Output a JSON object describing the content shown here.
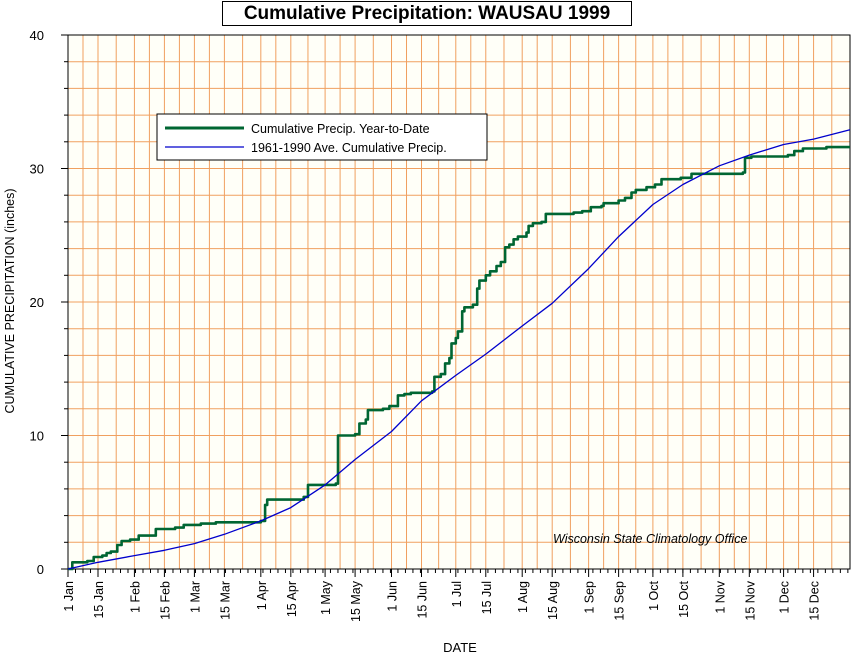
{
  "chart_data": {
    "type": "line",
    "title": "Cumulative Precipitation: WAUSAU 1999",
    "xlabel": "DATE",
    "ylabel": "CUMULATIVE PRECIPITATION (inches)",
    "ylim": [
      0,
      40
    ],
    "yticks": [
      0,
      10,
      20,
      30,
      40
    ],
    "xlim": [
      1,
      366
    ],
    "xticks": [
      {
        "day": 1,
        "label": "1 Jan"
      },
      {
        "day": 15,
        "label": "15 Jan"
      },
      {
        "day": 32,
        "label": "1 Feb"
      },
      {
        "day": 46,
        "label": "15 Feb"
      },
      {
        "day": 60,
        "label": "1 Mar"
      },
      {
        "day": 74,
        "label": "15 Mar"
      },
      {
        "day": 91,
        "label": "1 Apr"
      },
      {
        "day": 105,
        "label": "15 Apr"
      },
      {
        "day": 121,
        "label": "1 May"
      },
      {
        "day": 135,
        "label": "15 May"
      },
      {
        "day": 152,
        "label": "1 Jun"
      },
      {
        "day": 166,
        "label": "15 Jun"
      },
      {
        "day": 182,
        "label": "1 Jul"
      },
      {
        "day": 196,
        "label": "15 Jul"
      },
      {
        "day": 213,
        "label": "1 Aug"
      },
      {
        "day": 227,
        "label": "15 Aug"
      },
      {
        "day": 244,
        "label": "1 Sep"
      },
      {
        "day": 258,
        "label": "15 Sep"
      },
      {
        "day": 274,
        "label": "1 Oct"
      },
      {
        "day": 288,
        "label": "15 Oct"
      },
      {
        "day": 305,
        "label": "1 Nov"
      },
      {
        "day": 319,
        "label": "15 Nov"
      },
      {
        "day": 335,
        "label": "1 Dec"
      },
      {
        "day": 349,
        "label": "15 Dec"
      }
    ],
    "grid": true,
    "legend_position": "upper-left",
    "annotation": "Wisconsin State Climatology Office",
    "series": [
      {
        "name": "Cumulative Precip. Year-to-Date",
        "color": "#006633",
        "style": "step",
        "points": [
          [
            1,
            0.0
          ],
          [
            3,
            0.5
          ],
          [
            10,
            0.6
          ],
          [
            13,
            0.9
          ],
          [
            17,
            1.0
          ],
          [
            19,
            1.2
          ],
          [
            21,
            1.3
          ],
          [
            24,
            1.8
          ],
          [
            26,
            2.1
          ],
          [
            30,
            2.2
          ],
          [
            34,
            2.5
          ],
          [
            42,
            3.0
          ],
          [
            51,
            3.1
          ],
          [
            55,
            3.3
          ],
          [
            63,
            3.4
          ],
          [
            70,
            3.5
          ],
          [
            91,
            3.6
          ],
          [
            93,
            4.8
          ],
          [
            94,
            5.2
          ],
          [
            111,
            5.4
          ],
          [
            113,
            6.3
          ],
          [
            126,
            6.4
          ],
          [
            127,
            10.0
          ],
          [
            135,
            10.1
          ],
          [
            137,
            10.9
          ],
          [
            140,
            11.2
          ],
          [
            141,
            11.9
          ],
          [
            148,
            12.0
          ],
          [
            151,
            12.2
          ],
          [
            155,
            13.0
          ],
          [
            158,
            13.1
          ],
          [
            161,
            13.2
          ],
          [
            171,
            13.3
          ],
          [
            172,
            14.4
          ],
          [
            175,
            14.6
          ],
          [
            177,
            15.4
          ],
          [
            179,
            15.8
          ],
          [
            180,
            16.9
          ],
          [
            182,
            17.3
          ],
          [
            183,
            17.8
          ],
          [
            185,
            19.3
          ],
          [
            186,
            19.6
          ],
          [
            190,
            19.8
          ],
          [
            192,
            21.0
          ],
          [
            193,
            21.6
          ],
          [
            196,
            22.0
          ],
          [
            198,
            22.3
          ],
          [
            201,
            22.7
          ],
          [
            203,
            23.0
          ],
          [
            205,
            24.1
          ],
          [
            207,
            24.3
          ],
          [
            209,
            24.7
          ],
          [
            211,
            24.9
          ],
          [
            215,
            25.2
          ],
          [
            216,
            25.7
          ],
          [
            218,
            25.9
          ],
          [
            222,
            26.0
          ],
          [
            224,
            26.6
          ],
          [
            237,
            26.7
          ],
          [
            241,
            26.8
          ],
          [
            245,
            27.1
          ],
          [
            250,
            27.2
          ],
          [
            251,
            27.4
          ],
          [
            258,
            27.6
          ],
          [
            261,
            27.8
          ],
          [
            264,
            28.2
          ],
          [
            266,
            28.4
          ],
          [
            271,
            28.6
          ],
          [
            275,
            28.8
          ],
          [
            278,
            29.2
          ],
          [
            287,
            29.3
          ],
          [
            292,
            29.6
          ],
          [
            316,
            29.7
          ],
          [
            317,
            30.8
          ],
          [
            320,
            30.9
          ],
          [
            337,
            31.0
          ],
          [
            340,
            31.3
          ],
          [
            344,
            31.5
          ],
          [
            355,
            31.6
          ],
          [
            366,
            31.6
          ]
        ]
      },
      {
        "name": "1961-1990 Ave. Cumulative Precip.",
        "color": "#0000cc",
        "style": "line",
        "points": [
          [
            1,
            0.0
          ],
          [
            15,
            0.5
          ],
          [
            32,
            1.0
          ],
          [
            46,
            1.4
          ],
          [
            60,
            1.9
          ],
          [
            74,
            2.6
          ],
          [
            91,
            3.6
          ],
          [
            105,
            4.6
          ],
          [
            121,
            6.3
          ],
          [
            135,
            8.2
          ],
          [
            152,
            10.3
          ],
          [
            166,
            12.6
          ],
          [
            182,
            14.5
          ],
          [
            196,
            16.1
          ],
          [
            213,
            18.2
          ],
          [
            227,
            19.9
          ],
          [
            244,
            22.5
          ],
          [
            258,
            24.9
          ],
          [
            274,
            27.3
          ],
          [
            288,
            28.8
          ],
          [
            305,
            30.2
          ],
          [
            319,
            31.0
          ],
          [
            335,
            31.8
          ],
          [
            349,
            32.2
          ],
          [
            366,
            32.9
          ]
        ]
      }
    ]
  }
}
